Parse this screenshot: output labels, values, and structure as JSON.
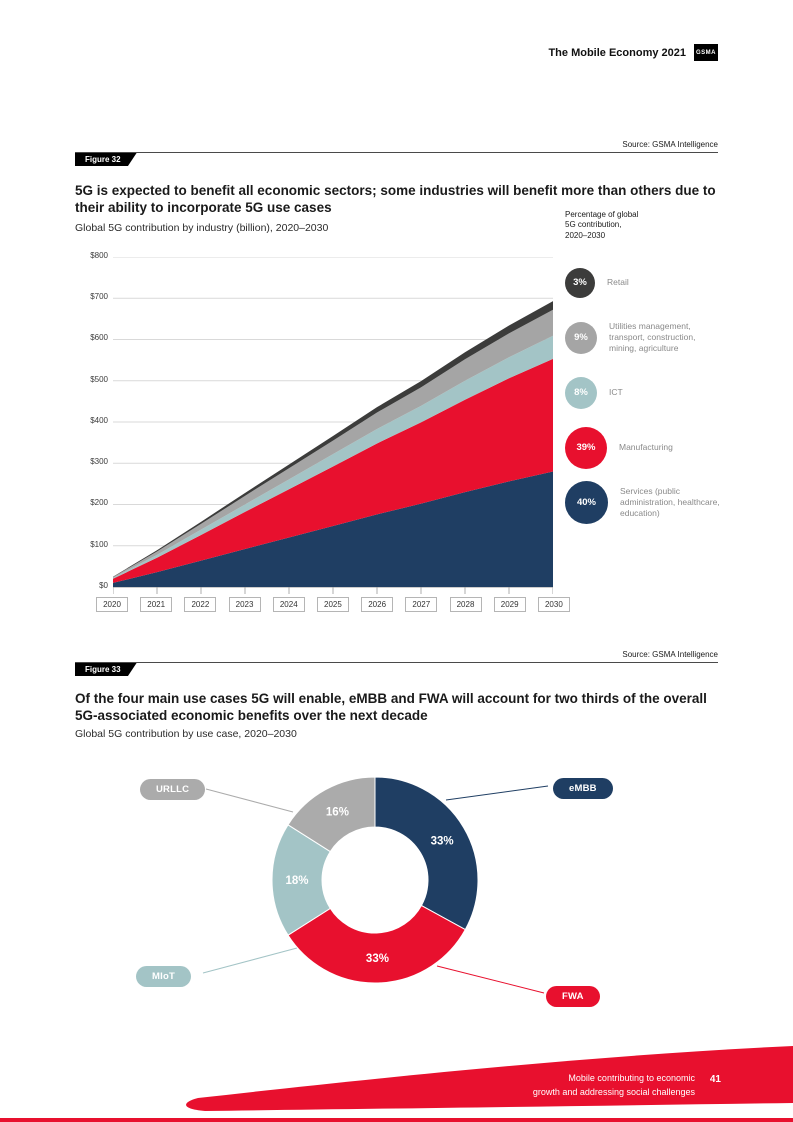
{
  "page": {
    "header_title": "The Mobile Economy 2021",
    "logo_text": "GSMA",
    "footer": {
      "caption_line1": "Mobile contributing to economic",
      "caption_line2": "growth and addressing social challenges",
      "page_number": "41",
      "accent_color": "#e8102e"
    }
  },
  "figure32": {
    "tag": "Figure 32",
    "source": "Source: GSMA Intelligence",
    "title": "5G is expected to benefit all economic sectors; some industries will benefit more than others due to their ability to incorporate 5G use cases",
    "subtitle": "Global 5G contribution by industry (billion), 2020–2030",
    "legend": {
      "header": "Percentage of global 5G contribution, 2020–2030",
      "items": [
        {
          "pct": "3%",
          "value": 3,
          "label": "Retail",
          "color": "#3c3c3b"
        },
        {
          "pct": "9%",
          "value": 9,
          "label": "Utilities management, transport, construction, mining, agriculture",
          "color": "#a5a5a5"
        },
        {
          "pct": "8%",
          "value": 8,
          "label": "ICT",
          "color": "#a3c4c6"
        },
        {
          "pct": "39%",
          "value": 39,
          "label": "Manufacturing",
          "color": "#e8102e"
        },
        {
          "pct": "40%",
          "value": 40,
          "label": "Services (public administration, healthcare, education)",
          "color": "#1f3e63"
        }
      ]
    },
    "chart_data": {
      "type": "area",
      "stacked": true,
      "title": "Global 5G contribution by industry (billion), 2020–2030",
      "x": [
        2020,
        2021,
        2022,
        2023,
        2024,
        2025,
        2026,
        2027,
        2028,
        2029,
        2030
      ],
      "series": [
        {
          "name": "Services (public administration, healthcare, education)",
          "color": "#1f3e63",
          "values": [
            10,
            36,
            64,
            92,
            120,
            148,
            176,
            202,
            230,
            256,
            280
          ]
        },
        {
          "name": "Manufacturing",
          "color": "#e8102e",
          "values": [
            10,
            35,
            62,
            90,
            117,
            144,
            172,
            197,
            224,
            250,
            273
          ]
        },
        {
          "name": "ICT",
          "color": "#a3c4c6",
          "values": [
            2,
            7,
            13,
            18,
            24,
            30,
            35,
            40,
            46,
            51,
            56
          ]
        },
        {
          "name": "Utilities management, transport, construction, mining, agriculture",
          "color": "#a5a5a5",
          "values": [
            2,
            8,
            14,
            21,
            27,
            33,
            40,
            45,
            52,
            58,
            63
          ]
        },
        {
          "name": "Retail",
          "color": "#3c3c3b",
          "values": [
            1,
            3,
            5,
            7,
            9,
            11,
            13,
            15,
            17,
            19,
            21
          ]
        }
      ],
      "ylim": [
        0,
        800
      ],
      "yticks": [
        "$0",
        "$100",
        "$200",
        "$300",
        "$400",
        "$500",
        "$600",
        "$700",
        "$800"
      ],
      "grid": true,
      "legend_position": "right"
    }
  },
  "figure33": {
    "tag": "Figure 33",
    "source": "Source: GSMA Intelligence",
    "title": "Of the four main use cases 5G will enable, eMBB and FWA will account for two thirds of the overall 5G-associated economic benefits over the next decade",
    "subtitle": "Global 5G contribution by use case, 2020–2030",
    "chart_data": {
      "type": "pie",
      "donut": true,
      "title": "Global 5G contribution by use case, 2020–2030",
      "slices": [
        {
          "label": "eMBB",
          "value": 33,
          "color": "#1f3e63"
        },
        {
          "label": "FWA",
          "value": 33,
          "color": "#e8102e"
        },
        {
          "label": "MIoT",
          "value": 18,
          "color": "#a3c4c6"
        },
        {
          "label": "URLLC",
          "value": 16,
          "color": "#ababab"
        }
      ]
    }
  }
}
